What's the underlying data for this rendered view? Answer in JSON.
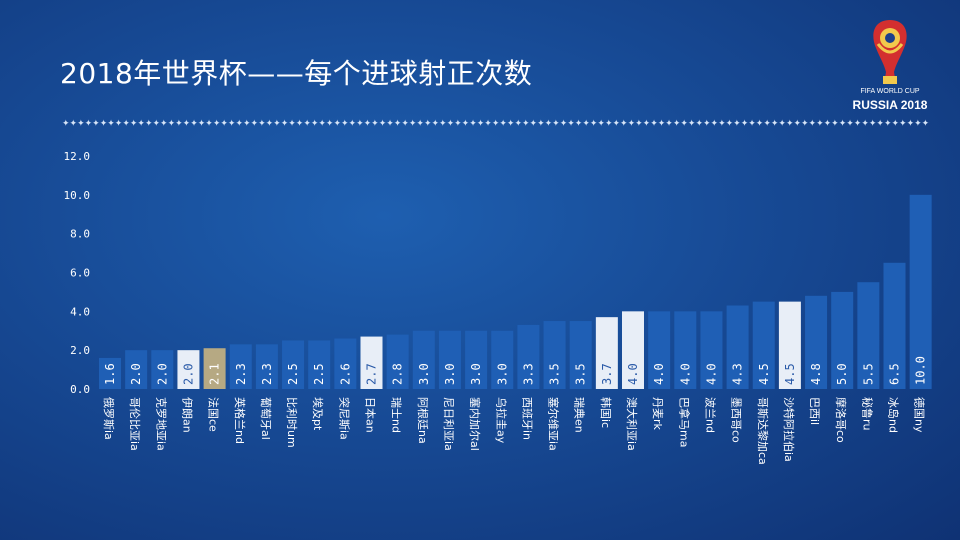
{
  "title": "2018年世界杯——每个进球射正次数",
  "logo": {
    "sub": "FIFA WORLD CUP",
    "main": "RUSSIA 2018",
    "icon": "world-cup-trophy-icon"
  },
  "colors": {
    "bar": "#1f5fb5",
    "bar_highlight": "#e8eef7",
    "bar_gold": "#b6a983",
    "axis_text": "#ffffff"
  },
  "chart_data": {
    "type": "bar",
    "title": "2018年世界杯——每个进球射正次数",
    "xlabel": "",
    "ylabel": "",
    "ylim": [
      0,
      12
    ],
    "yticks": [
      "0.0",
      "2.0",
      "4.0",
      "6.0",
      "8.0",
      "10.0",
      "12.0"
    ],
    "grid": false,
    "categories": [
      "俄罗斯ia",
      "哥伦比亚ia",
      "克罗地亚ia",
      "伊朗an",
      "法国ce",
      "英格兰nd",
      "葡萄牙al",
      "比利时um",
      "埃及pt",
      "突尼斯ia",
      "日本an",
      "瑞士nd",
      "阿根廷na",
      "尼日利亚ia",
      "塞内加尔al",
      "乌拉圭ay",
      "西班牙in",
      "塞尔维亚ia",
      "瑞典en",
      "韩国ic",
      "澳大利亚ia",
      "丹麦rk",
      "巴拿马ma",
      "波兰nd",
      "墨西哥co",
      "哥斯达黎加ca",
      "沙特阿拉伯ia",
      "巴西il",
      "摩洛哥co",
      "秘鲁ru",
      "冰岛nd",
      "德国ny"
    ],
    "values": [
      1.6,
      2.0,
      2.0,
      2.0,
      2.1,
      2.3,
      2.3,
      2.5,
      2.5,
      2.6,
      2.7,
      2.8,
      3.0,
      3.0,
      3.0,
      3.0,
      3.3,
      3.5,
      3.5,
      3.7,
      4.0,
      4.0,
      4.0,
      4.0,
      4.3,
      4.5,
      4.5,
      4.8,
      5.0,
      5.5,
      6.5,
      10.0
    ],
    "value_labels": [
      "1.6",
      "2.0",
      "2.0",
      "2.0",
      "2.1",
      "2.3",
      "2.3",
      "2.5",
      "2.5",
      "2.6",
      "2.7",
      "2.8",
      "3.0",
      "3.0",
      "3.0",
      "3.0",
      "3.3",
      "3.5",
      "3.5",
      "3.7",
      "4.0",
      "4.0",
      "4.0",
      "4.0",
      "4.3",
      "4.5",
      "4.5",
      "4.8",
      "5.0",
      "5.5",
      "6.5",
      "10.0"
    ],
    "highlight": {
      "gold": [
        4
      ],
      "light": [
        3,
        10,
        19,
        20,
        26
      ]
    }
  }
}
